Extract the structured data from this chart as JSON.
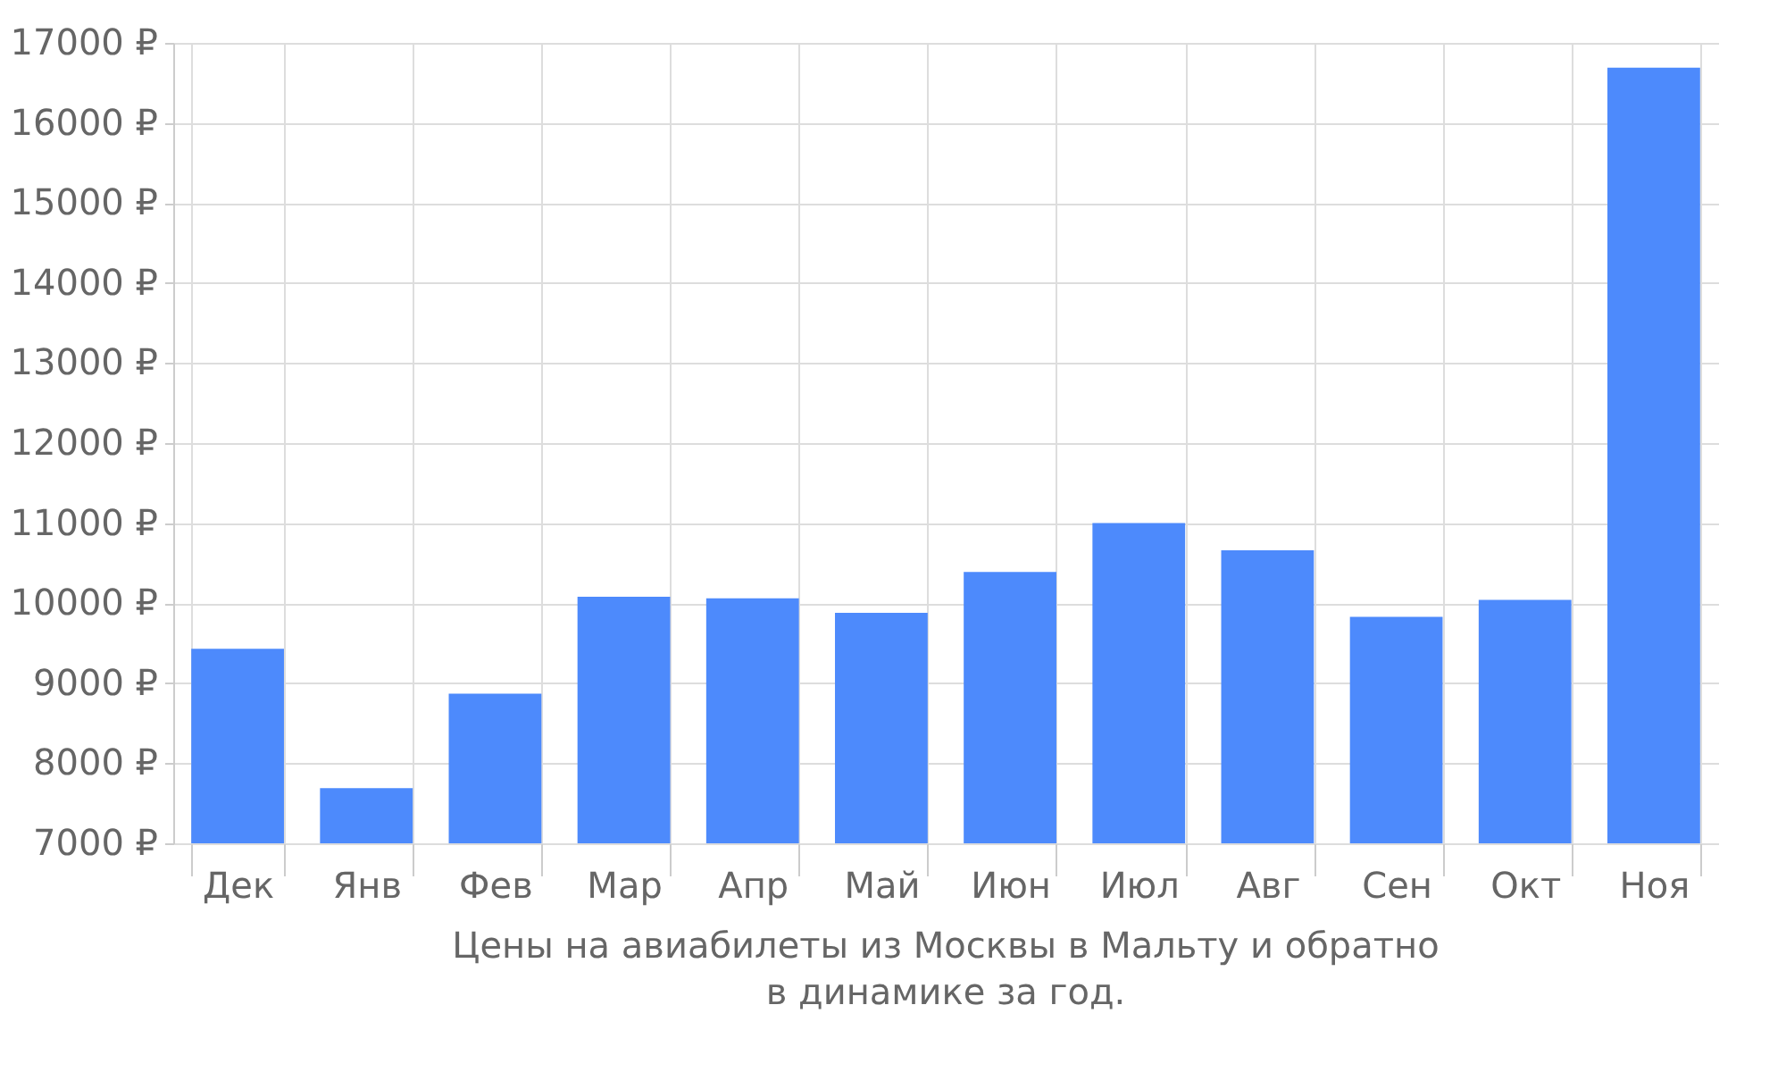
{
  "chart_data": {
    "type": "bar",
    "categories": [
      "Дек",
      "Янв",
      "Фев",
      "Мар",
      "Апр",
      "Май",
      "Июн",
      "Июл",
      "Авг",
      "Сен",
      "Окт",
      "Ноя"
    ],
    "values": [
      9430,
      7690,
      8870,
      10080,
      10060,
      9880,
      10390,
      11000,
      10660,
      9830,
      10040,
      16690
    ],
    "color": "#4d8afc",
    "ylim": [
      7000,
      17000
    ],
    "yticks": [
      {
        "value": 7000,
        "label": "7000 ₽"
      },
      {
        "value": 8000,
        "label": "8000 ₽"
      },
      {
        "value": 9000,
        "label": "9000 ₽"
      },
      {
        "value": 10000,
        "label": "10000 ₽"
      },
      {
        "value": 11000,
        "label": "11000 ₽"
      },
      {
        "value": 12000,
        "label": "12000 ₽"
      },
      {
        "value": 13000,
        "label": "13000 ₽"
      },
      {
        "value": 14000,
        "label": "14000 ₽"
      },
      {
        "value": 15000,
        "label": "15000 ₽"
      },
      {
        "value": 16000,
        "label": "16000 ₽"
      },
      {
        "value": 17000,
        "label": "17000 ₽"
      }
    ],
    "grid": true,
    "annotations": [
      "Цены на авиабилеты из Москвы в Мальту и обратно",
      "в динамике за год."
    ]
  }
}
